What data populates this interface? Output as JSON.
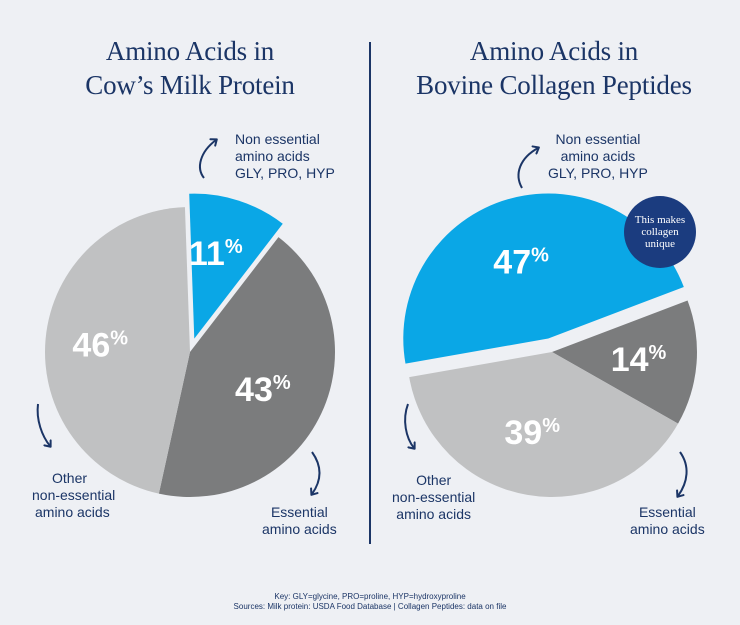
{
  "chart_data": [
    {
      "type": "pie",
      "title": "Amino Acids in Cow's Milk Protein",
      "title_lines": [
        "Amino Acids in",
        "Cow’s Milk Protein"
      ],
      "slices": [
        {
          "name": "Non essential amino acids GLY, PRO, HYP",
          "value": 11,
          "label": "11%",
          "color": "#0aa7e6",
          "exploded": true
        },
        {
          "name": "Essential amino acids",
          "value": 43,
          "label": "43%",
          "color": "#7b7c7d",
          "exploded": false
        },
        {
          "name": "Other non-essential amino acids",
          "value": 46,
          "label": "46%",
          "color": "#c0c1c2",
          "exploded": false
        }
      ]
    },
    {
      "type": "pie",
      "title": "Amino Acids in Bovine Collagen Peptides",
      "title_lines": [
        "Amino Acids in",
        "Bovine Collagen Peptides"
      ],
      "slices": [
        {
          "name": "Non essential amino acids GLY, PRO, HYP",
          "value": 47,
          "label": "47%",
          "color": "#0aa7e6",
          "exploded": true
        },
        {
          "name": "Essential amino acids",
          "value": 14,
          "label": "14%",
          "color": "#7b7c7d",
          "exploded": false
        },
        {
          "name": "Other non-essential amino acids",
          "value": 39,
          "label": "39%",
          "color": "#c0c1c2",
          "exploded": false
        }
      ]
    }
  ],
  "labels": {
    "left_nonessential": [
      "Non essential",
      "amino acids",
      "GLY, PRO, HYP"
    ],
    "left_essential": [
      "Essential",
      "amino acids"
    ],
    "left_other": [
      "Other",
      "non-essential",
      "amino acids"
    ],
    "right_nonessential": [
      "Non essential",
      "amino acids",
      "GLY, PRO, HYP"
    ],
    "right_essential": [
      "Essential",
      "amino acids"
    ],
    "right_other": [
      "Other",
      "non-essential",
      "amino acids"
    ]
  },
  "badge": [
    "This makes",
    "collagen",
    "unique"
  ],
  "footer": {
    "key": "Key: GLY=glycine, PRO=proline, HYP=hydroxyproline",
    "sources": "Sources: Milk protein: USDA Food Database | Collagen Peptides: data on file"
  },
  "colors": {
    "navy": "#1b3566",
    "blue_slice": "#0aa7e6",
    "dark_gray_slice": "#7b7c7d",
    "light_gray_slice": "#c0c1c2",
    "background": "#eef0f4"
  }
}
